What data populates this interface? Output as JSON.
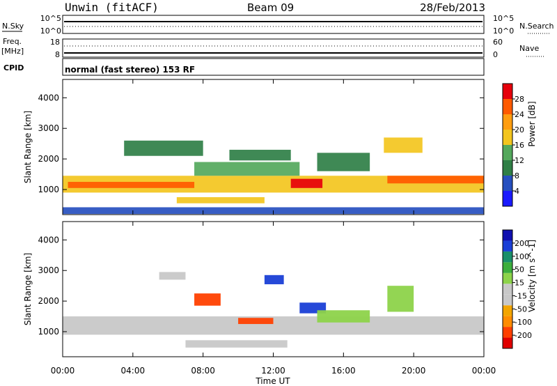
{
  "header": {
    "station": "Unwin (fitACF)",
    "beam": "Beam 09",
    "date": "28/Feb/2013"
  },
  "panels": {
    "nsky": {
      "left_label": "N.Sky",
      "left_ticks": [
        "10^5",
        "10^0"
      ],
      "right_ticks": [
        "10^5",
        "10^0"
      ],
      "right_label": "N.Search"
    },
    "freq": {
      "left_label_top": "Freq.",
      "left_label_unit": "[MHz]",
      "left_ticks": [
        "18",
        "8"
      ],
      "right_ticks": [
        "60",
        "0"
      ],
      "right_label": "Nave"
    },
    "cpid": {
      "left_label": "CPID",
      "text": "normal (fast stereo) 153 RF"
    }
  },
  "colors": {
    "power": [
      "#1a1aff",
      "#264fbf",
      "#2f7f46",
      "#54a85c",
      "#f3c51e",
      "#ff9d10",
      "#ff5a00",
      "#e6000b"
    ],
    "velocity": [
      "#e00000",
      "#ff4000",
      "#ff8c00",
      "#f3a500",
      "#c8c8c8",
      "#c8c8c8",
      "#8dd34a",
      "#3cae3c",
      "#1a8f6a",
      "#1a3fd6",
      "#1010b0"
    ]
  },
  "chart_data": [
    {
      "type": "heatmap",
      "title": "",
      "xlabel": "Time UT",
      "ylabel": "Slant Range [km]",
      "x_ticks": [
        "00:00",
        "04:00",
        "08:00",
        "12:00",
        "16:00",
        "20:00",
        "00:00"
      ],
      "xlim_hours": [
        0,
        24
      ],
      "y_ticks": [
        1000,
        2000,
        3000,
        4000
      ],
      "ylim": [
        180,
        4600
      ],
      "colorbar": {
        "label": "Power [dB]",
        "ticks": [
          28,
          24,
          20,
          16,
          12,
          8,
          4
        ],
        "range": [
          0,
          32
        ]
      },
      "regions": [
        {
          "t0": 0.0,
          "t1": 24.0,
          "r0": 900,
          "r1": 1450,
          "dB": 16
        },
        {
          "t0": 0.3,
          "t1": 7.5,
          "r0": 1050,
          "r1": 1250,
          "dB": 24
        },
        {
          "t0": 7.5,
          "t1": 13.5,
          "r0": 1450,
          "r1": 1900,
          "dB": 14
        },
        {
          "t0": 13.0,
          "t1": 14.8,
          "r0": 1050,
          "r1": 1350,
          "dB": 30
        },
        {
          "t0": 6.5,
          "t1": 11.5,
          "r0": 550,
          "r1": 750,
          "dB": 16
        },
        {
          "t0": 9.5,
          "t1": 13.0,
          "r0": 1950,
          "r1": 2300,
          "dB": 11
        },
        {
          "t0": 18.5,
          "t1": 24.0,
          "r0": 1200,
          "r1": 1450,
          "dB": 26
        },
        {
          "t0": 18.3,
          "t1": 20.5,
          "r0": 2200,
          "r1": 2700,
          "dB": 18
        },
        {
          "t0": 3.5,
          "t1": 8.0,
          "r0": 2100,
          "r1": 2600,
          "dB": 8
        },
        {
          "t0": 14.5,
          "t1": 17.5,
          "r0": 1600,
          "r1": 2200,
          "dB": 8
        },
        {
          "t0": 0.0,
          "t1": 24.0,
          "r0": 200,
          "r1": 420,
          "dB": 6
        }
      ]
    },
    {
      "type": "heatmap",
      "title": "",
      "xlabel": "Time UT",
      "ylabel": "Slant Range [km]",
      "x_ticks": [
        "00:00",
        "04:00",
        "08:00",
        "12:00",
        "16:00",
        "20:00",
        "00:00"
      ],
      "xlim_hours": [
        0,
        24
      ],
      "y_ticks": [
        1000,
        2000,
        3000,
        4000
      ],
      "ylim": [
        180,
        4600
      ],
      "colorbar": {
        "label": "Velocity [m s^-1]",
        "ticks": [
          200,
          100,
          50,
          15,
          -15,
          -50,
          -100,
          -200
        ],
        "range": [
          -250,
          250
        ]
      },
      "regions": [
        {
          "t0": 0.0,
          "t1": 24.0,
          "r0": 900,
          "r1": 1500,
          "v": 0
        },
        {
          "t0": 7.5,
          "t1": 9.0,
          "r0": 1850,
          "r1": 2250,
          "v": -200
        },
        {
          "t0": 10.0,
          "t1": 12.0,
          "r0": 1250,
          "r1": 1450,
          "v": -200
        },
        {
          "t0": 7.0,
          "t1": 12.8,
          "r0": 480,
          "r1": 720,
          "v": -60
        },
        {
          "t0": 13.5,
          "t1": 15.0,
          "r0": 1600,
          "r1": 1950,
          "v": 200
        },
        {
          "t0": 11.5,
          "t1": 12.6,
          "r0": 2550,
          "r1": 2850,
          "v": 200
        },
        {
          "t0": 14.5,
          "t1": 17.5,
          "r0": 1300,
          "r1": 1700,
          "v": 50
        },
        {
          "t0": 5.5,
          "t1": 7.0,
          "r0": 2700,
          "r1": 2950,
          "v": -60
        },
        {
          "t0": 18.5,
          "t1": 20.0,
          "r0": 1650,
          "r1": 2500,
          "v": 30
        }
      ]
    }
  ]
}
